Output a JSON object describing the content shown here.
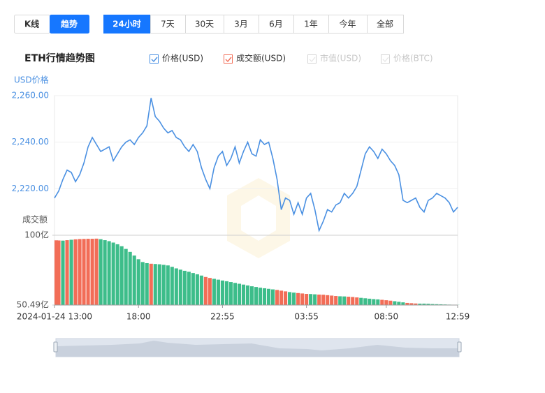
{
  "tabs": {
    "items": [
      "K线",
      "趋势"
    ],
    "active": 1
  },
  "ranges": {
    "items": [
      "24小时",
      "7天",
      "30天",
      "3月",
      "6月",
      "1年",
      "今年",
      "全部"
    ],
    "active": 0
  },
  "title": "ETH行情趋势图",
  "legend": [
    {
      "name": "价格(USD)",
      "color": "#4a90e2",
      "checked": true
    },
    {
      "name": "成交额(USD)",
      "color": "#f26d57",
      "checked": true
    },
    {
      "name": "市值(USD)",
      "color": "#d6d6d6",
      "checked": false
    },
    {
      "name": "价格(BTC)",
      "color": "#d6d6d6",
      "checked": false
    }
  ],
  "chart_data": [
    {
      "type": "line",
      "ylabel": "USD价格",
      "ylim": [
        2200,
        2260
      ],
      "yticks": [
        {
          "value": 2260,
          "label": "2,260.00"
        },
        {
          "value": 2240,
          "label": "2,240.00"
        },
        {
          "value": 2220,
          "label": "2,220.00"
        }
      ],
      "grid": true,
      "series": [
        {
          "color": "#4a90e2",
          "values": [
            2216,
            2219,
            2224,
            2228,
            2227,
            2223,
            2226,
            2231,
            2238,
            2242,
            2239,
            2236,
            2237,
            2238,
            2232,
            2235,
            2238,
            2240,
            2241,
            2239,
            2242,
            2244,
            2247,
            2259,
            2251,
            2249,
            2246,
            2244,
            2245,
            2242,
            2241,
            2238,
            2236,
            2239,
            2236,
            2229,
            2224,
            2220,
            2229,
            2234,
            2236,
            2230,
            2233,
            2238,
            2231,
            2236,
            2240,
            2235,
            2234,
            2241,
            2239,
            2240,
            2233,
            2224,
            2211,
            2216,
            2215,
            2209,
            2214,
            2209,
            2216,
            2218,
            2211,
            2202,
            2206,
            2211,
            2210,
            2213,
            2214,
            2218,
            2216,
            2218,
            2221,
            2228,
            2235,
            2238,
            2236,
            2233,
            2237,
            2235,
            2232,
            2230,
            2226,
            2215,
            2214,
            2215,
            2216,
            2212,
            2210,
            2215,
            2216,
            2218,
            2217,
            2216,
            2214,
            2210,
            2212
          ]
        }
      ]
    },
    {
      "type": "bar",
      "ylabel": "成交额",
      "ylim": [
        50.49,
        100
      ],
      "yticks": [
        {
          "value": 100,
          "label": "100亿"
        },
        {
          "value": 50.49,
          "label": "50.49亿"
        }
      ],
      "categories": [
        "2024-01-24 13:00",
        null,
        null,
        null,
        null,
        null,
        null,
        null,
        null,
        null,
        null,
        null,
        null,
        null,
        null,
        null,
        null,
        null,
        null,
        null,
        "18:00",
        null,
        null,
        null,
        null,
        null,
        null,
        null,
        null,
        null,
        null,
        null,
        null,
        null,
        null,
        null,
        null,
        null,
        null,
        null,
        "22:55",
        null,
        null,
        null,
        null,
        null,
        null,
        null,
        null,
        null,
        null,
        null,
        null,
        null,
        null,
        null,
        null,
        null,
        null,
        null,
        "03:55",
        null,
        null,
        null,
        null,
        null,
        null,
        null,
        null,
        null,
        null,
        null,
        null,
        null,
        null,
        null,
        null,
        null,
        null,
        "08:50",
        null,
        null,
        null,
        null,
        null,
        null,
        null,
        null,
        null,
        null,
        null,
        null,
        null,
        null,
        null,
        null,
        "12:59"
      ],
      "values": [
        96.4,
        96.3,
        96.2,
        96.5,
        96.8,
        97.1,
        97.3,
        97.4,
        97.5,
        97.5,
        97.6,
        97.2,
        96.5,
        95.8,
        94.8,
        93.6,
        92.2,
        90.3,
        88.2,
        85.6,
        83.0,
        81.0,
        80.2,
        79.8,
        79.6,
        79.4,
        79.0,
        78.6,
        77.6,
        76.5,
        75.6,
        74.8,
        74.1,
        73.2,
        72.3,
        71.4,
        70.4,
        69.7,
        69.1,
        68.5,
        67.9,
        67.4,
        66.8,
        66.2,
        65.6,
        65.0,
        64.4,
        63.8,
        63.3,
        62.8,
        62.4,
        62.0,
        61.6,
        61.2,
        60.7,
        60.2,
        59.7,
        59.3,
        59.0,
        58.7,
        58.4,
        58.3,
        58.1,
        57.9,
        57.8,
        57.5,
        57.2,
        56.9,
        56.7,
        56.6,
        56.4,
        56.2,
        55.9,
        55.6,
        55.3,
        55.0,
        54.7,
        54.5,
        54.2,
        53.9,
        53.6,
        53.2,
        52.8,
        52.4,
        52.0,
        51.8,
        51.6,
        51.5,
        51.5,
        51.4,
        51.2,
        51.1,
        51.0,
        50.9,
        50.8,
        50.7,
        50.6
      ],
      "colors": [
        "#f26d57",
        "#f26d57",
        "#3dbd8a",
        "#f26d57",
        "#3dbd8a",
        "#f26d57",
        "#f26d57",
        "#f26d57",
        "#f26d57",
        "#f26d57",
        "#f26d57",
        "#3dbd8a",
        "#3dbd8a",
        "#3dbd8a",
        "#3dbd8a",
        "#3dbd8a",
        "#3dbd8a",
        "#3dbd8a",
        "#3dbd8a",
        "#3dbd8a",
        "#3dbd8a",
        "#3dbd8a",
        "#3dbd8a",
        "#f26d57",
        "#3dbd8a",
        "#3dbd8a",
        "#3dbd8a",
        "#3dbd8a",
        "#3dbd8a",
        "#3dbd8a",
        "#3dbd8a",
        "#3dbd8a",
        "#3dbd8a",
        "#3dbd8a",
        "#3dbd8a",
        "#3dbd8a",
        "#f26d57",
        "#f26d57",
        "#3dbd8a",
        "#3dbd8a",
        "#3dbd8a",
        "#3dbd8a",
        "#3dbd8a",
        "#3dbd8a",
        "#3dbd8a",
        "#3dbd8a",
        "#3dbd8a",
        "#3dbd8a",
        "#3dbd8a",
        "#3dbd8a",
        "#3dbd8a",
        "#3dbd8a",
        "#3dbd8a",
        "#f26d57",
        "#f26d57",
        "#f26d57",
        "#3dbd8a",
        "#3dbd8a",
        "#f26d57",
        "#f26d57",
        "#f26d57",
        "#3dbd8a",
        "#3dbd8a",
        "#f26d57",
        "#f26d57",
        "#f26d57",
        "#f26d57",
        "#f26d57",
        "#3dbd8a",
        "#3dbd8a",
        "#f26d57",
        "#f26d57",
        "#f26d57",
        "#3dbd8a",
        "#3dbd8a",
        "#3dbd8a",
        "#3dbd8a",
        "#3dbd8a",
        "#f26d57",
        "#f26d57",
        "#f26d57",
        "#3dbd8a",
        "#3dbd8a",
        "#3dbd8a",
        "#f26d57",
        "#f26d57",
        "#f26d57",
        "#3dbd8a",
        "#3dbd8a",
        "#3dbd8a",
        "#3dbd8a",
        "#3dbd8a",
        "#3dbd8a",
        "#3dbd8a",
        "#3dbd8a",
        "#3dbd8a",
        "#3dbd8a"
      ]
    }
  ]
}
